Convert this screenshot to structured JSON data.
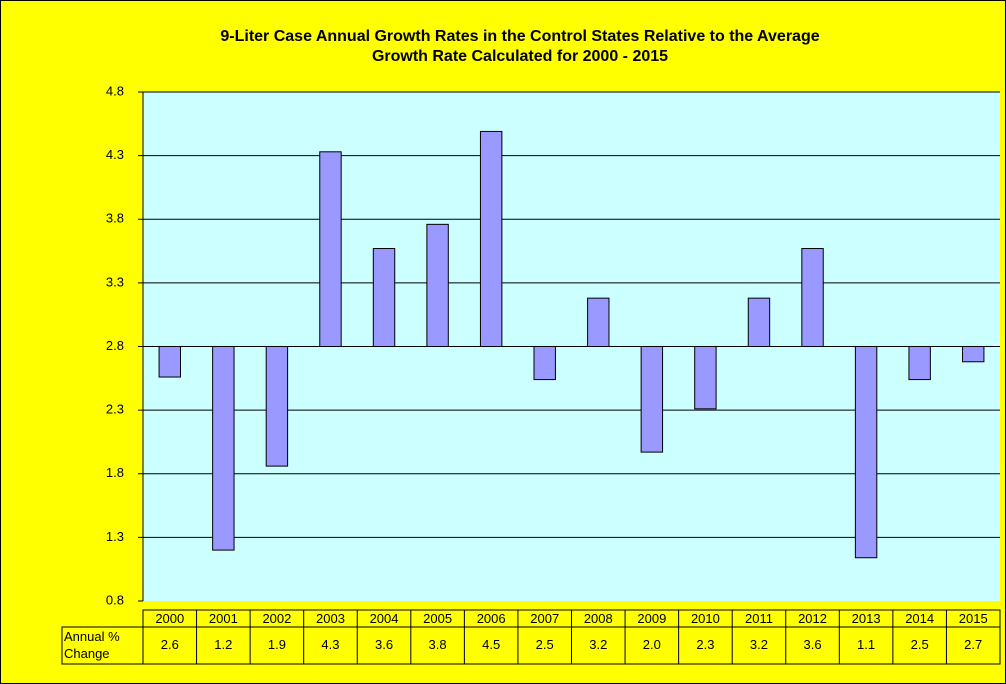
{
  "chart_data": {
    "type": "bar",
    "title": [
      "9-Liter Case Annual Growth Rates in the Control States Relative to the Average",
      "Growth Rate Calculated for 2000 - 2015"
    ],
    "categories": [
      "2000",
      "2001",
      "2002",
      "2003",
      "2004",
      "2005",
      "2006",
      "2007",
      "2008",
      "2009",
      "2010",
      "2011",
      "2012",
      "2013",
      "2014",
      "2015"
    ],
    "series": [
      {
        "name": "Annual % Change",
        "color": "#9999ff",
        "values": [
          2.56,
          1.2,
          1.86,
          4.33,
          3.57,
          3.76,
          4.49,
          2.54,
          3.18,
          1.97,
          2.31,
          3.18,
          3.57,
          1.14,
          2.54,
          2.68
        ],
        "value_labels": [
          "2.6",
          "1.2",
          "1.9",
          "4.3",
          "3.6",
          "3.8",
          "4.5",
          "2.5",
          "3.2",
          "2.0",
          "2.3",
          "3.2",
          "3.6",
          "1.1",
          "2.5",
          "2.7"
        ]
      }
    ],
    "baseline": 2.8,
    "ylim": [
      0.8,
      4.8
    ],
    "yticks": [
      0.8,
      1.3,
      1.8,
      2.3,
      2.8,
      3.3,
      3.8,
      4.3,
      4.8
    ],
    "grid": true
  }
}
